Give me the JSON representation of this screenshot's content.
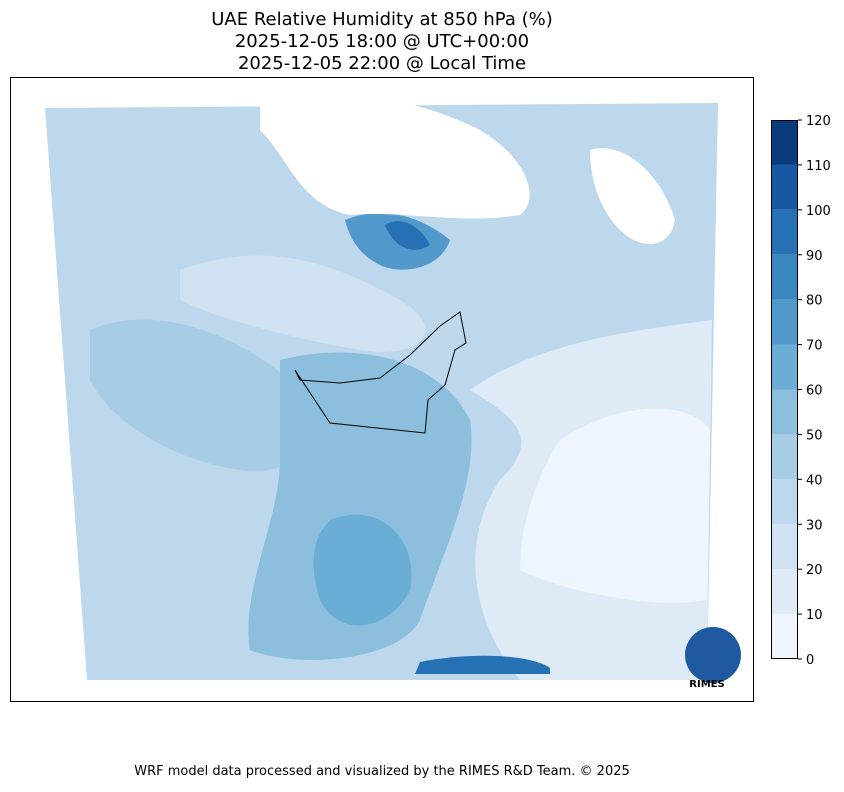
{
  "title": [
    "UAE Relative Humidity at 850 hPa (%)",
    "2025-12-05 18:00 @ UTC+00:00",
    "2025-12-05 22:00 @ Local Time"
  ],
  "colorbar": {
    "ticks": [
      0,
      10,
      20,
      30,
      40,
      50,
      60,
      70,
      80,
      90,
      100,
      110,
      120
    ],
    "colors": [
      "#eef5fc",
      "#deebf7",
      "#d0e1f2",
      "#bdd7ec",
      "#a6cde3",
      "#8cbfdd",
      "#6aaed6",
      "#5299cb",
      "#3a87c0",
      "#2671b3",
      "#1459a2",
      "#083b7c"
    ]
  },
  "logo": "RIMES",
  "footer": "WRF model data processed and visualized by the RIMES R&D Team. © 2025"
}
